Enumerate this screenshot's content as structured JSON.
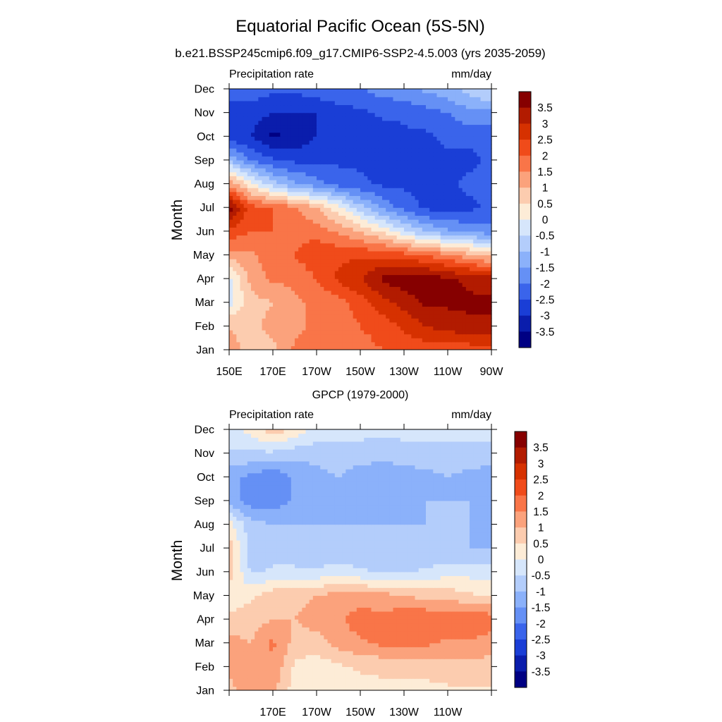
{
  "title": "Equatorial Pacific Ocean (5S-5N)",
  "subtitle": "b.e21.BSSP245cmip6.f09_g17.CMIP6-SSP2-4.5.003 (yrs 2035-2059)",
  "colorbar": {
    "levels": [
      "3.5",
      "3",
      "2.5",
      "2",
      "1.5",
      "1",
      "0.5",
      "0",
      "-0.5",
      "-1",
      "-1.5",
      "-2",
      "-2.5",
      "-3",
      "-3.5"
    ],
    "colors": [
      "#860000",
      "#b21b00",
      "#d63100",
      "#f04b1a",
      "#f97548",
      "#fba27c",
      "#fcccaf",
      "#fdecd7",
      "#d6e6fb",
      "#b3cdfb",
      "#8bb1fa",
      "#6590f5",
      "#3a64eb",
      "#1a3ed6",
      "#0a1dac",
      "#000083"
    ]
  },
  "chart_data": [
    {
      "type": "heatmap",
      "title": "",
      "left_label": "Precipitation rate",
      "right_label": "mm/day",
      "ylabel": "Month",
      "x_tick_labels": [
        "150E",
        "170E",
        "170W",
        "150W",
        "130W",
        "110W",
        "90W"
      ],
      "y_tick_labels": [
        "Jan",
        "Feb",
        "Mar",
        "Apr",
        "May",
        "Jun",
        "Jul",
        "Aug",
        "Sep",
        "Oct",
        "Nov",
        "Dec"
      ],
      "x_range": [
        150,
        270
      ],
      "y_range": [
        "Jan",
        "Dec"
      ],
      "colorbar_range": [
        -3.5,
        3.5
      ],
      "grid": false,
      "x": [
        150,
        160,
        170,
        180,
        190,
        200,
        210,
        220,
        230,
        240,
        250,
        260,
        270
      ],
      "y": [
        "Jan",
        "Feb",
        "Mar",
        "Apr",
        "May",
        "Jun",
        "Jul",
        "Aug",
        "Sep",
        "Oct",
        "Nov",
        "Dec"
      ],
      "z": [
        [
          1.2,
          0.8,
          0.8,
          1.6,
          1.6,
          1.8,
          1.8,
          2.0,
          2.2,
          2.2,
          2.2,
          2.2,
          2.2
        ],
        [
          1.0,
          0.8,
          1.2,
          1.4,
          1.6,
          1.8,
          2.0,
          2.2,
          2.6,
          3.0,
          3.2,
          3.4,
          3.4
        ],
        [
          -0.2,
          0.8,
          1.0,
          1.4,
          1.6,
          1.8,
          2.2,
          2.8,
          3.2,
          3.6,
          3.6,
          3.6,
          3.6
        ],
        [
          -0.2,
          1.2,
          1.6,
          1.6,
          2.0,
          2.6,
          3.0,
          3.6,
          3.8,
          3.8,
          3.6,
          3.4,
          3.2
        ],
        [
          1.2,
          1.4,
          1.8,
          2.0,
          2.4,
          2.4,
          2.4,
          2.4,
          2.2,
          2.0,
          1.6,
          1.2,
          0.8
        ],
        [
          2.4,
          2.0,
          2.0,
          1.8,
          1.8,
          1.4,
          1.0,
          0.4,
          -0.4,
          -1.0,
          -1.4,
          -1.6,
          -1.8
        ],
        [
          3.8,
          2.2,
          2.0,
          1.6,
          1.0,
          0.2,
          -0.8,
          -1.6,
          -2.2,
          -2.6,
          -2.8,
          -2.6,
          -2.4
        ],
        [
          1.4,
          0.2,
          -0.8,
          -1.4,
          -1.8,
          -2.2,
          -2.4,
          -2.6,
          -2.6,
          -2.6,
          -2.6,
          -2.4,
          -2.4
        ],
        [
          -1.0,
          -2.0,
          -2.4,
          -2.6,
          -2.6,
          -2.6,
          -2.6,
          -2.6,
          -2.6,
          -2.6,
          -2.6,
          -2.6,
          -2.4
        ],
        [
          -2.8,
          -3.0,
          -3.6,
          -3.4,
          -3.0,
          -2.8,
          -2.8,
          -2.8,
          -2.6,
          -2.6,
          -2.4,
          -2.4,
          -2.4
        ],
        [
          -2.8,
          -2.8,
          -3.0,
          -3.0,
          -3.0,
          -2.8,
          -2.6,
          -2.4,
          -2.4,
          -2.2,
          -2.0,
          -1.6,
          -1.6
        ],
        [
          -2.2,
          -2.2,
          -2.4,
          -2.4,
          -2.2,
          -2.0,
          -2.0,
          -1.8,
          -1.6,
          -1.4,
          -1.2,
          -0.8,
          -0.4
        ]
      ]
    },
    {
      "type": "heatmap",
      "title": "GPCP (1979-2000)",
      "left_label": "Precipitation rate",
      "right_label": "mm/day",
      "ylabel": "Month",
      "x_tick_labels": [
        "170E",
        "170W",
        "150W",
        "130W",
        "110W"
      ],
      "y_tick_labels": [
        "Jan",
        "Feb",
        "Mar",
        "Apr",
        "May",
        "Jun",
        "Jul",
        "Aug",
        "Sep",
        "Oct",
        "Nov",
        "Dec"
      ],
      "x_range": [
        150,
        270
      ],
      "y_range": [
        "Jan",
        "Dec"
      ],
      "colorbar_range": [
        -3.5,
        3.5
      ],
      "grid": false,
      "x": [
        150,
        160,
        170,
        180,
        190,
        200,
        210,
        220,
        230,
        240,
        250,
        260,
        270
      ],
      "y": [
        "Jan",
        "Feb",
        "Mar",
        "Apr",
        "May",
        "Jun",
        "Jul",
        "Aug",
        "Sep",
        "Oct",
        "Nov",
        "Dec"
      ],
      "z": [
        [
          0.8,
          1.4,
          1.2,
          0.2,
          0.2,
          0.2,
          0.2,
          0.4,
          0.4,
          0.4,
          0.4,
          0.4,
          0.4
        ],
        [
          1.2,
          1.2,
          1.4,
          0.4,
          0.2,
          0.4,
          0.6,
          0.6,
          0.6,
          0.6,
          0.8,
          0.8,
          0.8
        ],
        [
          1.2,
          1.0,
          1.6,
          0.8,
          0.8,
          1.2,
          1.4,
          1.6,
          1.8,
          1.6,
          1.4,
          1.4,
          1.2
        ],
        [
          0.6,
          0.8,
          1.0,
          1.0,
          1.2,
          1.4,
          1.8,
          1.6,
          2.0,
          2.0,
          1.8,
          2.0,
          1.8
        ],
        [
          0.2,
          0.4,
          0.8,
          0.8,
          1.0,
          1.2,
          1.2,
          1.2,
          1.0,
          0.8,
          0.8,
          0.6,
          0.4
        ],
        [
          0.8,
          -0.6,
          -0.4,
          -0.4,
          -0.4,
          -0.2,
          -0.4,
          -0.6,
          -0.6,
          -0.4,
          -0.2,
          -0.2,
          -0.2
        ],
        [
          0.8,
          -0.8,
          -0.8,
          -0.8,
          -1.0,
          -1.0,
          -1.0,
          -1.0,
          -1.0,
          -1.0,
          -1.0,
          -1.0,
          -1.0
        ],
        [
          0.2,
          -0.8,
          -1.0,
          -1.0,
          -1.0,
          -1.0,
          -1.0,
          -1.0,
          -1.0,
          -1.0,
          -1.0,
          -1.0,
          -1.4
        ],
        [
          -1.2,
          -1.8,
          -1.8,
          -1.4,
          -1.0,
          -1.2,
          -1.4,
          -1.2,
          -1.2,
          -1.0,
          -1.0,
          -1.0,
          -1.4
        ],
        [
          -1.4,
          -1.6,
          -2.0,
          -1.4,
          -1.2,
          -1.0,
          -1.4,
          -1.4,
          -1.4,
          -1.2,
          -1.0,
          -1.2,
          -1.4
        ],
        [
          -0.6,
          -0.6,
          -0.6,
          -0.8,
          -0.8,
          -0.6,
          -0.6,
          -0.8,
          -0.6,
          -0.6,
          -0.6,
          -0.6,
          -0.6
        ],
        [
          -0.2,
          0.2,
          0.8,
          0.4,
          -0.2,
          -0.4,
          -0.4,
          -0.4,
          -0.4,
          -0.4,
          -0.4,
          -0.4,
          -0.4
        ]
      ]
    }
  ]
}
